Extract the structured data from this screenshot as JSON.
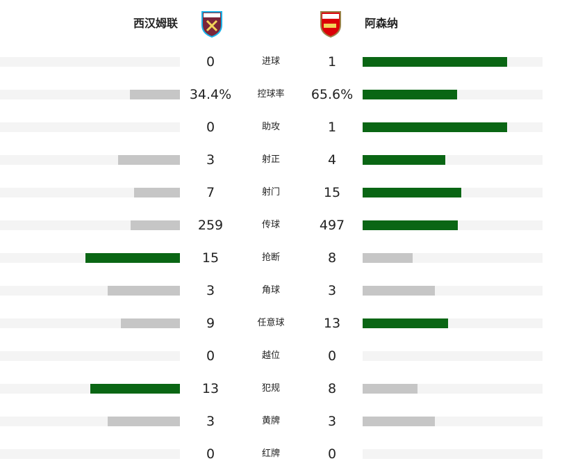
{
  "header": {
    "home": "西汉姆联",
    "away": "阿森纳"
  },
  "rows": [
    {
      "label": "进球",
      "home": "0",
      "away": "1"
    },
    {
      "label": "控球率",
      "home": "34.4%",
      "away": "65.6%"
    },
    {
      "label": "助攻",
      "home": "0",
      "away": "1"
    },
    {
      "label": "射正",
      "home": "3",
      "away": "4"
    },
    {
      "label": "射门",
      "home": "7",
      "away": "15"
    },
    {
      "label": "传球",
      "home": "259",
      "away": "497"
    },
    {
      "label": "抢断",
      "home": "15",
      "away": "8"
    },
    {
      "label": "角球",
      "home": "3",
      "away": "3"
    },
    {
      "label": "任意球",
      "home": "9",
      "away": "13"
    },
    {
      "label": "越位",
      "home": "0",
      "away": "0"
    },
    {
      "label": "犯规",
      "home": "13",
      "away": "8"
    },
    {
      "label": "黄牌",
      "home": "3",
      "away": "3"
    },
    {
      "label": "红牌",
      "home": "0",
      "away": "0"
    }
  ]
}
